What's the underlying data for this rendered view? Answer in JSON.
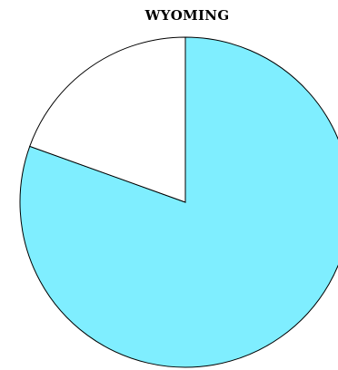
{
  "chart_data": {
    "type": "pie",
    "title": "WYOMING",
    "start": "top",
    "direction": "clockwise",
    "slices": [
      {
        "value": 80.5,
        "color": "#7FEEFF"
      },
      {
        "value": 19.5,
        "color": "#FFFFFF"
      }
    ],
    "stroke_color": "#000000"
  }
}
